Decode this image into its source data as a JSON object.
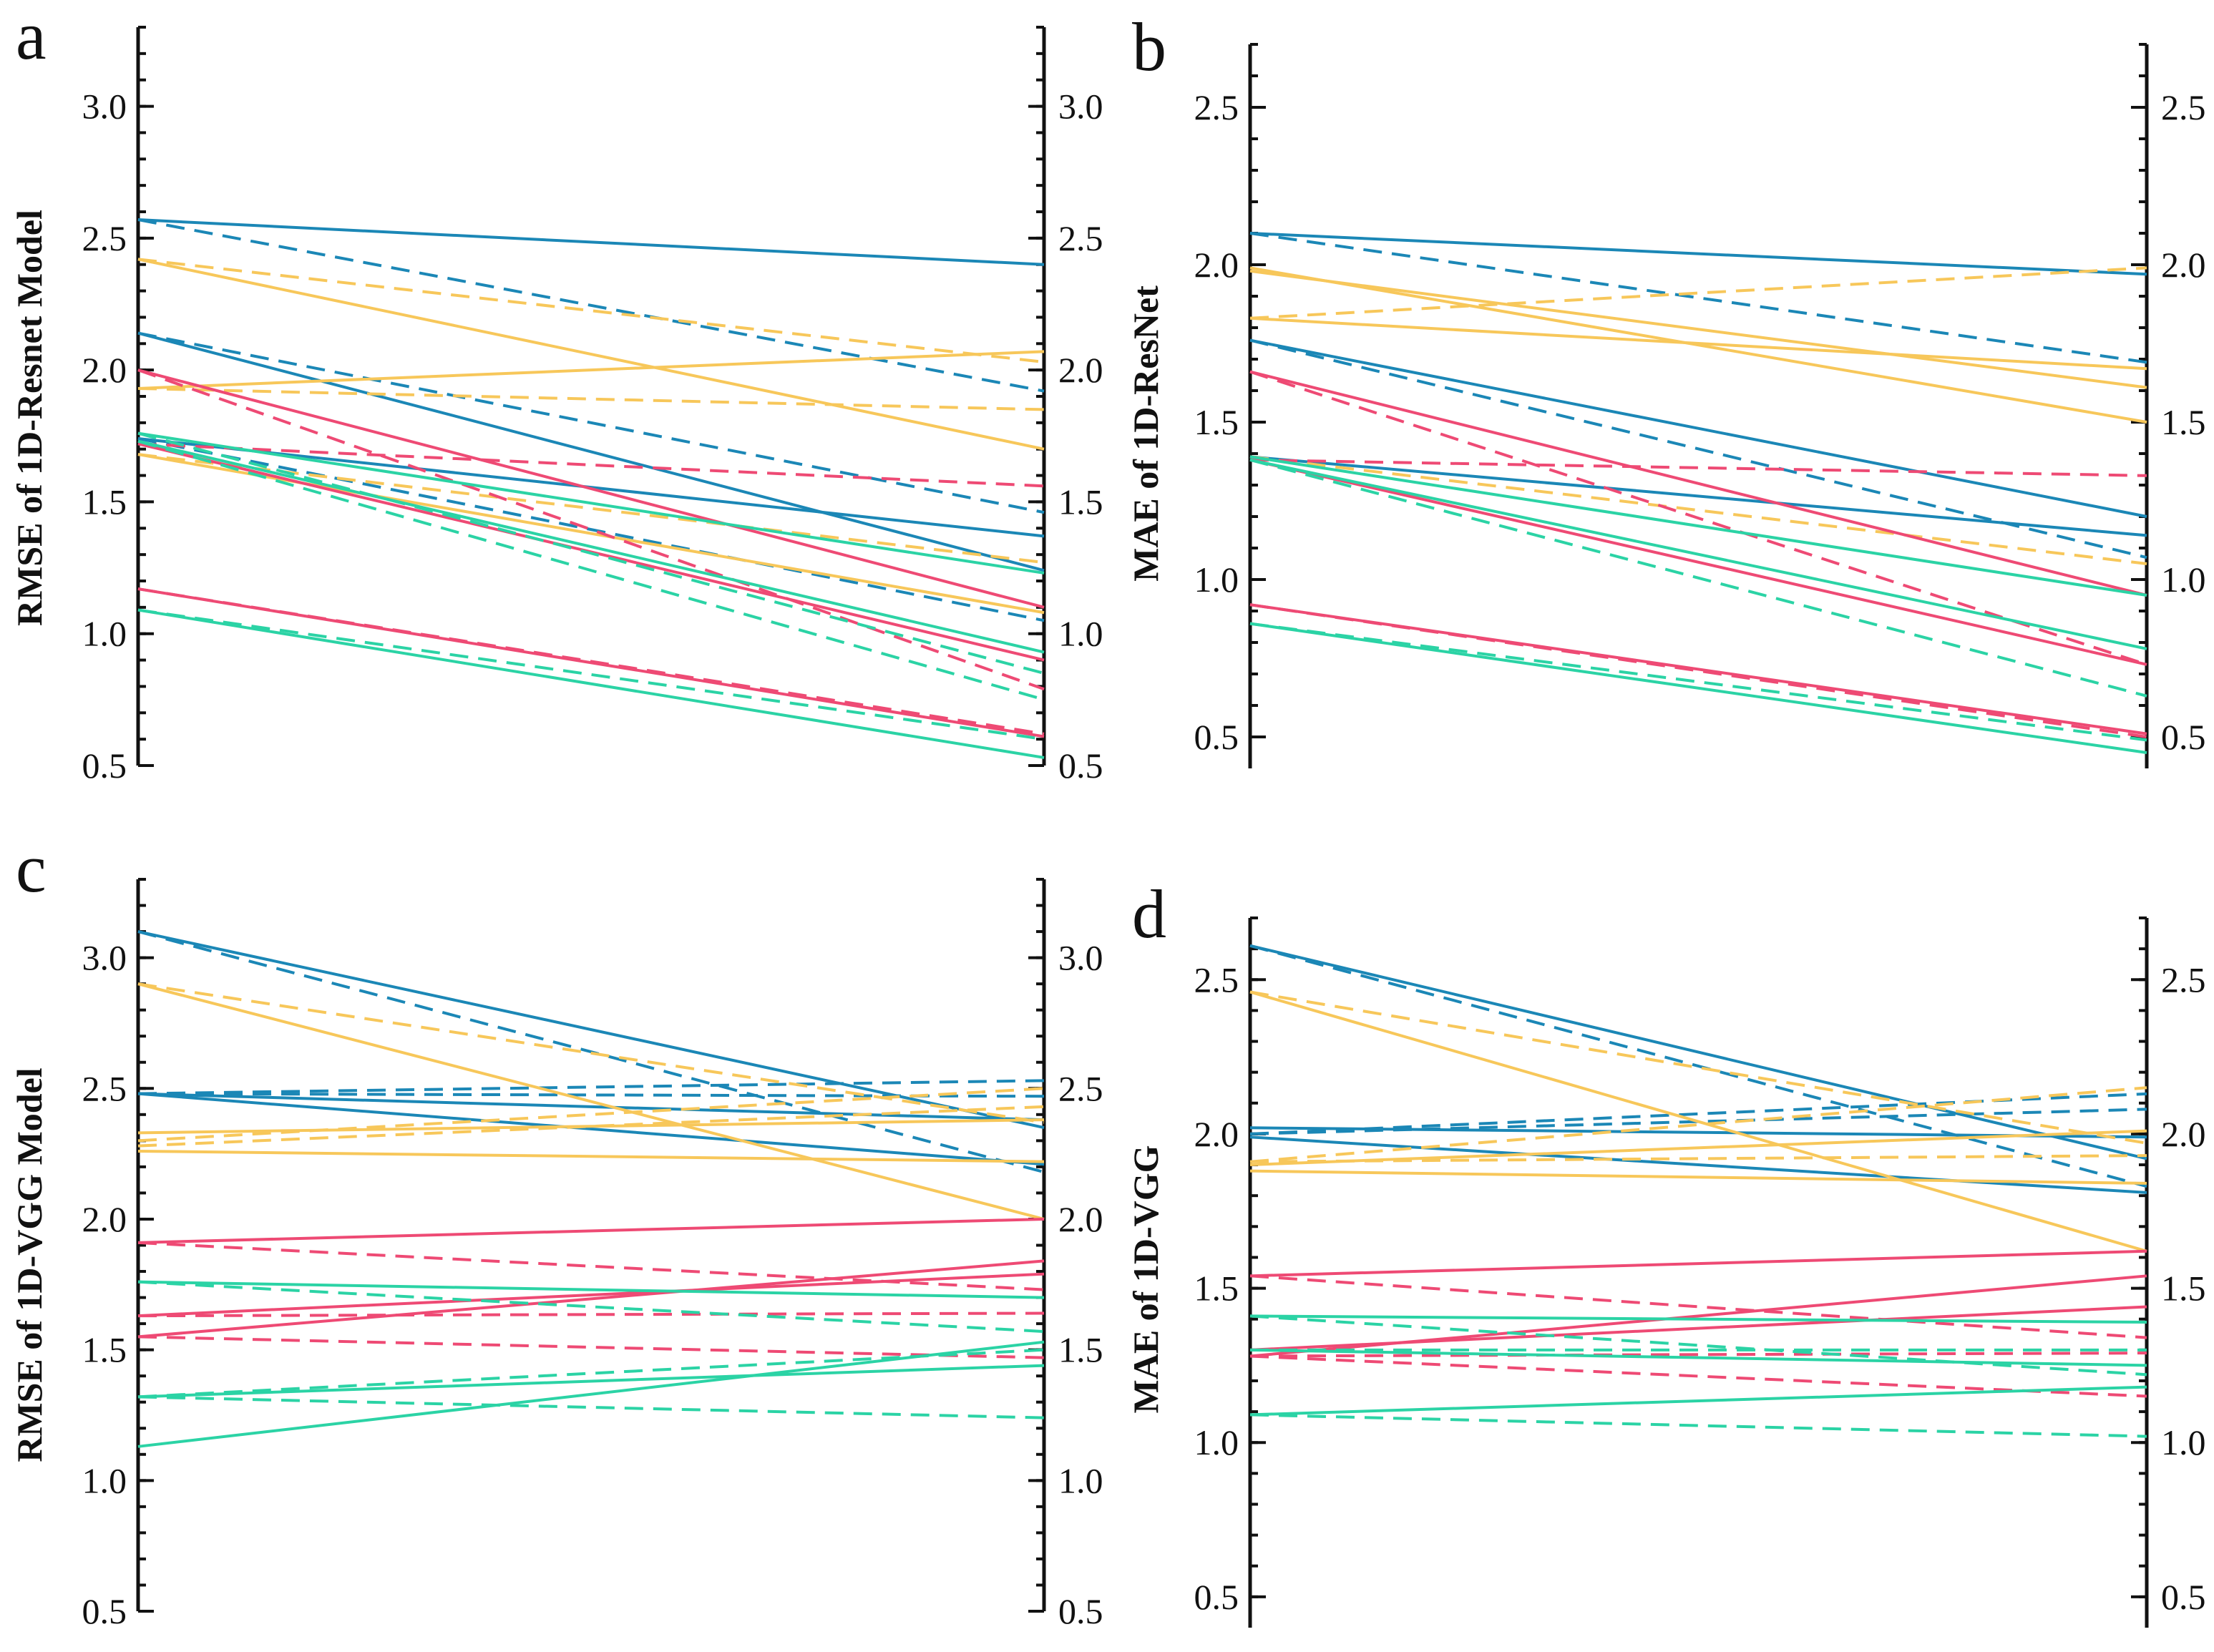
{
  "colors": {
    "blue": "#1b87b6",
    "yellow": "#f7c75a",
    "red": "#ee4a74",
    "green": "#2bd3a5"
  },
  "chart_data": [
    {
      "panel": "a",
      "type": "line",
      "title": "",
      "xlabel": "",
      "ylabel": "RMSE of 1D-Resnet Model",
      "ylim": [
        0.5,
        3.3
      ],
      "yticks": [
        0.5,
        1.0,
        1.5,
        2.0,
        2.5,
        3.0
      ],
      "tick_labels": [
        "0.5",
        "1.0",
        "1.5",
        "2.0",
        "2.5",
        "3.0"
      ],
      "grid": false,
      "legend": "none",
      "series": [
        {
          "color": "blue",
          "style": "solid",
          "values": [
            2.57,
            2.4
          ]
        },
        {
          "color": "blue",
          "style": "dashed",
          "values": [
            2.57,
            1.92
          ]
        },
        {
          "color": "blue",
          "style": "solid",
          "values": [
            2.14,
            1.24
          ]
        },
        {
          "color": "blue",
          "style": "dashed",
          "values": [
            2.14,
            1.46
          ]
        },
        {
          "color": "blue",
          "style": "solid",
          "values": [
            1.74,
            1.37
          ]
        },
        {
          "color": "blue",
          "style": "dashed",
          "values": [
            1.74,
            1.05
          ]
        },
        {
          "color": "yellow",
          "style": "solid",
          "values": [
            2.42,
            1.7
          ]
        },
        {
          "color": "yellow",
          "style": "dashed",
          "values": [
            2.42,
            2.03
          ]
        },
        {
          "color": "yellow",
          "style": "solid",
          "values": [
            1.93,
            2.07
          ]
        },
        {
          "color": "yellow",
          "style": "dashed",
          "values": [
            1.93,
            1.85
          ]
        },
        {
          "color": "yellow",
          "style": "solid",
          "values": [
            1.68,
            1.08
          ]
        },
        {
          "color": "yellow",
          "style": "dashed",
          "values": [
            1.68,
            1.27
          ]
        },
        {
          "color": "red",
          "style": "solid",
          "values": [
            2.0,
            1.1
          ]
        },
        {
          "color": "red",
          "style": "dashed",
          "values": [
            2.0,
            0.79
          ]
        },
        {
          "color": "red",
          "style": "dashed",
          "values": [
            1.72,
            1.56
          ]
        },
        {
          "color": "red",
          "style": "solid",
          "values": [
            1.72,
            0.9
          ]
        },
        {
          "color": "red",
          "style": "solid",
          "values": [
            1.17,
            0.61
          ]
        },
        {
          "color": "red",
          "style": "dashed",
          "values": [
            1.17,
            0.62
          ]
        },
        {
          "color": "green",
          "style": "solid",
          "values": [
            1.76,
            1.23
          ]
        },
        {
          "color": "green",
          "style": "dashed",
          "values": [
            1.76,
            0.85
          ]
        },
        {
          "color": "green",
          "style": "solid",
          "values": [
            1.73,
            0.93
          ]
        },
        {
          "color": "green",
          "style": "dashed",
          "values": [
            1.73,
            0.75
          ]
        },
        {
          "color": "green",
          "style": "solid",
          "values": [
            1.09,
            0.53
          ]
        },
        {
          "color": "green",
          "style": "dashed",
          "values": [
            1.09,
            0.6
          ]
        }
      ]
    },
    {
      "panel": "b",
      "type": "line",
      "title": "",
      "xlabel": "",
      "ylabel": "MAE of 1D-ResNet",
      "ylim": [
        0.4,
        2.7
      ],
      "yticks": [
        0.5,
        1.0,
        1.5,
        2.0,
        2.5
      ],
      "tick_labels": [
        "0.5",
        "1.0",
        "1.5",
        "2.0",
        "2.5"
      ],
      "grid": false,
      "legend": "none",
      "series": [
        {
          "color": "blue",
          "style": "solid",
          "values": [
            2.1,
            1.97
          ]
        },
        {
          "color": "blue",
          "style": "dashed",
          "values": [
            2.1,
            1.69
          ]
        },
        {
          "color": "blue",
          "style": "solid",
          "values": [
            1.76,
            1.2
          ]
        },
        {
          "color": "blue",
          "style": "solid",
          "values": [
            1.39,
            1.14
          ]
        },
        {
          "color": "blue",
          "style": "dashed",
          "values": [
            1.76,
            1.07
          ]
        },
        {
          "color": "yellow",
          "style": "solid",
          "values": [
            1.99,
            1.5
          ]
        },
        {
          "color": "yellow",
          "style": "dashed",
          "values": [
            1.83,
            1.99
          ]
        },
        {
          "color": "yellow",
          "style": "solid",
          "values": [
            1.83,
            1.67
          ]
        },
        {
          "color": "yellow",
          "style": "solid",
          "values": [
            1.98,
            1.61
          ]
        },
        {
          "color": "yellow",
          "style": "dashed",
          "values": [
            1.39,
            1.05
          ]
        },
        {
          "color": "red",
          "style": "solid",
          "values": [
            1.66,
            0.95
          ]
        },
        {
          "color": "red",
          "style": "dashed",
          "values": [
            1.66,
            0.73
          ]
        },
        {
          "color": "red",
          "style": "dashed",
          "values": [
            1.38,
            1.33
          ]
        },
        {
          "color": "red",
          "style": "solid",
          "values": [
            1.38,
            0.73
          ]
        },
        {
          "color": "red",
          "style": "solid",
          "values": [
            0.92,
            0.51
          ]
        },
        {
          "color": "red",
          "style": "dashed",
          "values": [
            0.92,
            0.5
          ]
        },
        {
          "color": "green",
          "style": "solid",
          "values": [
            1.39,
            0.95
          ]
        },
        {
          "color": "green",
          "style": "solid",
          "values": [
            1.38,
            0.78
          ]
        },
        {
          "color": "green",
          "style": "dashed",
          "values": [
            1.38,
            0.63
          ]
        },
        {
          "color": "green",
          "style": "solid",
          "values": [
            0.86,
            0.45
          ]
        },
        {
          "color": "green",
          "style": "dashed",
          "values": [
            0.86,
            0.49
          ]
        }
      ]
    },
    {
      "panel": "c",
      "type": "line",
      "title": "",
      "xlabel": "",
      "ylabel": "RMSE of 1D-VGG Model",
      "ylim": [
        0.5,
        3.3
      ],
      "yticks": [
        0.5,
        1.0,
        1.5,
        2.0,
        2.5,
        3.0
      ],
      "tick_labels": [
        "0.5",
        "1.0",
        "1.5",
        "2.0",
        "2.5",
        "3.0"
      ],
      "grid": false,
      "legend": "none",
      "series": [
        {
          "color": "blue",
          "style": "solid",
          "values": [
            3.1,
            2.35
          ]
        },
        {
          "color": "blue",
          "style": "dashed",
          "values": [
            3.1,
            2.18
          ]
        },
        {
          "color": "blue",
          "style": "solid",
          "values": [
            2.48,
            2.38
          ]
        },
        {
          "color": "blue",
          "style": "solid",
          "values": [
            2.48,
            2.21
          ]
        },
        {
          "color": "blue",
          "style": "dashed",
          "values": [
            2.48,
            2.53
          ]
        },
        {
          "color": "blue",
          "style": "dashed",
          "values": [
            2.48,
            2.47
          ]
        },
        {
          "color": "yellow",
          "style": "solid",
          "values": [
            2.9,
            2.0
          ]
        },
        {
          "color": "yellow",
          "style": "dashed",
          "values": [
            2.9,
            2.37
          ]
        },
        {
          "color": "yellow",
          "style": "solid",
          "values": [
            2.33,
            2.38
          ]
        },
        {
          "color": "yellow",
          "style": "solid",
          "values": [
            2.26,
            2.22
          ]
        },
        {
          "color": "yellow",
          "style": "dashed",
          "values": [
            2.3,
            2.5
          ]
        },
        {
          "color": "yellow",
          "style": "dashed",
          "values": [
            2.28,
            2.43
          ]
        },
        {
          "color": "red",
          "style": "solid",
          "values": [
            1.91,
            2.0
          ]
        },
        {
          "color": "red",
          "style": "dashed",
          "values": [
            1.91,
            1.73
          ]
        },
        {
          "color": "red",
          "style": "solid",
          "values": [
            1.63,
            1.79
          ]
        },
        {
          "color": "red",
          "style": "solid",
          "values": [
            1.55,
            1.84
          ]
        },
        {
          "color": "red",
          "style": "dashed",
          "values": [
            1.63,
            1.64
          ]
        },
        {
          "color": "red",
          "style": "dashed",
          "values": [
            1.55,
            1.47
          ]
        },
        {
          "color": "green",
          "style": "solid",
          "values": [
            1.76,
            1.7
          ]
        },
        {
          "color": "green",
          "style": "dashed",
          "values": [
            1.76,
            1.57
          ]
        },
        {
          "color": "green",
          "style": "solid",
          "values": [
            1.32,
            1.44
          ]
        },
        {
          "color": "green",
          "style": "dashed",
          "values": [
            1.32,
            1.24
          ]
        },
        {
          "color": "green",
          "style": "solid",
          "values": [
            1.13,
            1.53
          ]
        },
        {
          "color": "green",
          "style": "dashed",
          "values": [
            1.32,
            1.5
          ]
        }
      ]
    },
    {
      "panel": "d",
      "type": "line",
      "title": "",
      "xlabel": "",
      "ylabel": "MAE of 1D-VGG",
      "ylim": [
        0.4,
        2.7
      ],
      "yticks": [
        0.5,
        1.0,
        1.5,
        2.0,
        2.5
      ],
      "tick_labels": [
        "0.5",
        "1.0",
        "1.5",
        "2.0",
        "2.5"
      ],
      "grid": false,
      "legend": "none",
      "series": [
        {
          "color": "blue",
          "style": "solid",
          "values": [
            2.61,
            1.92
          ]
        },
        {
          "color": "blue",
          "style": "dashed",
          "values": [
            2.61,
            1.83
          ]
        },
        {
          "color": "blue",
          "style": "solid",
          "values": [
            2.02,
            1.99
          ]
        },
        {
          "color": "blue",
          "style": "solid",
          "values": [
            1.99,
            1.81
          ]
        },
        {
          "color": "blue",
          "style": "dashed",
          "values": [
            2.0,
            2.13
          ]
        },
        {
          "color": "blue",
          "style": "dashed",
          "values": [
            2.0,
            2.08
          ]
        },
        {
          "color": "yellow",
          "style": "solid",
          "values": [
            2.46,
            1.62
          ]
        },
        {
          "color": "yellow",
          "style": "dashed",
          "values": [
            2.46,
            1.97
          ]
        },
        {
          "color": "yellow",
          "style": "solid",
          "values": [
            1.9,
            2.01
          ]
        },
        {
          "color": "yellow",
          "style": "solid",
          "values": [
            1.88,
            1.84
          ]
        },
        {
          "color": "yellow",
          "style": "dashed",
          "values": [
            1.91,
            2.15
          ]
        },
        {
          "color": "yellow",
          "style": "dashed",
          "values": [
            1.91,
            1.93
          ]
        },
        {
          "color": "red",
          "style": "solid",
          "values": [
            1.54,
            1.62
          ]
        },
        {
          "color": "red",
          "style": "dashed",
          "values": [
            1.54,
            1.34
          ]
        },
        {
          "color": "red",
          "style": "solid",
          "values": [
            1.28,
            1.54
          ]
        },
        {
          "color": "red",
          "style": "solid",
          "values": [
            1.3,
            1.44
          ]
        },
        {
          "color": "red",
          "style": "dashed",
          "values": [
            1.28,
            1.29
          ]
        },
        {
          "color": "red",
          "style": "dashed",
          "values": [
            1.28,
            1.15
          ]
        },
        {
          "color": "green",
          "style": "solid",
          "values": [
            1.41,
            1.39
          ]
        },
        {
          "color": "green",
          "style": "dashed",
          "values": [
            1.41,
            1.22
          ]
        },
        {
          "color": "green",
          "style": "solid",
          "values": [
            1.3,
            1.25
          ]
        },
        {
          "color": "green",
          "style": "dashed",
          "values": [
            1.3,
            1.3
          ]
        },
        {
          "color": "green",
          "style": "solid",
          "values": [
            1.09,
            1.18
          ]
        },
        {
          "color": "green",
          "style": "dashed",
          "values": [
            1.09,
            1.02
          ]
        }
      ]
    }
  ]
}
